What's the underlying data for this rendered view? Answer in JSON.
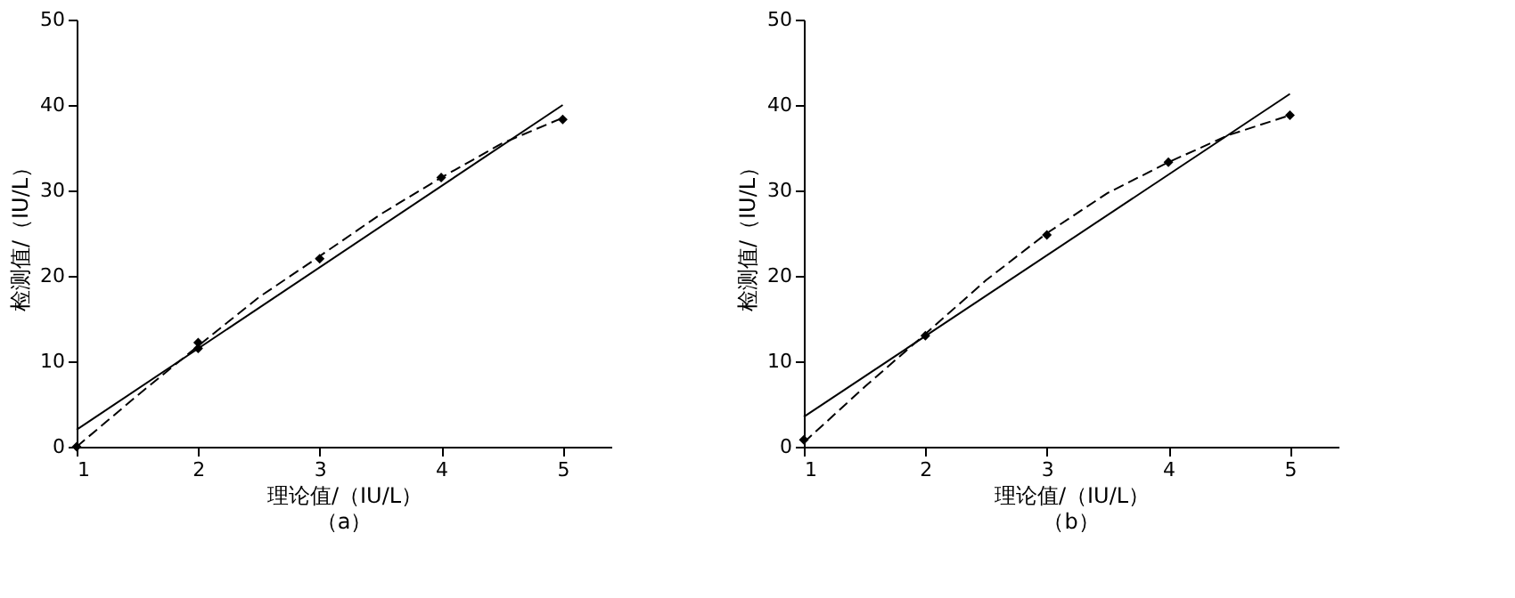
{
  "chart_data": [
    {
      "type": "line",
      "title": "（a）",
      "xlabel": "理论值/（IU/L）",
      "ylabel": "检测值/（IU/L）",
      "xlim": [
        1,
        5.4
      ],
      "xticks": [
        1,
        2,
        3,
        4,
        5
      ],
      "ylim": [
        0,
        50
      ],
      "yticks": [
        0,
        10,
        20,
        30,
        40,
        50
      ],
      "grid": false,
      "series": [
        {
          "type": "scatter",
          "color": "#000000",
          "marker": "diamond",
          "x": [
            1,
            2,
            2,
            3,
            4,
            5
          ],
          "values": [
            0,
            11.5,
            12.2,
            22,
            31.5,
            38.3
          ]
        },
        {
          "color": "#000000",
          "line_style": "solid",
          "x": [
            1,
            5
          ],
          "values": [
            2,
            40
          ]
        },
        {
          "color": "#000000",
          "line_style": "dashed",
          "x": [
            1,
            1.5,
            2,
            2.5,
            3,
            3.5,
            4,
            4.5,
            5
          ],
          "values": [
            0,
            6,
            11.8,
            17.5,
            22.3,
            27.2,
            31.5,
            35.5,
            38.5
          ]
        }
      ]
    },
    {
      "type": "line",
      "title": "（b）",
      "xlabel": "理论值/（IU/L）",
      "ylabel": "检测值/（IU/L）",
      "xlim": [
        1,
        5.4
      ],
      "xticks": [
        1,
        2,
        3,
        4,
        5
      ],
      "ylim": [
        0,
        50
      ],
      "yticks": [
        0,
        10,
        20,
        30,
        40,
        50
      ],
      "grid": false,
      "series": [
        {
          "type": "scatter",
          "color": "#000000",
          "marker": "diamond",
          "x": [
            1,
            2,
            3,
            4,
            5
          ],
          "values": [
            0.8,
            13,
            24.8,
            33.3,
            38.8
          ]
        },
        {
          "color": "#000000",
          "line_style": "solid",
          "x": [
            1,
            5
          ],
          "values": [
            3.5,
            41.3
          ]
        },
        {
          "color": "#000000",
          "line_style": "dashed",
          "x": [
            1,
            1.5,
            2,
            2.5,
            3,
            3.5,
            4,
            4.5,
            5
          ],
          "values": [
            0.5,
            7,
            13.2,
            19.5,
            25,
            29.7,
            33.3,
            36.5,
            38.8
          ]
        }
      ]
    }
  ]
}
